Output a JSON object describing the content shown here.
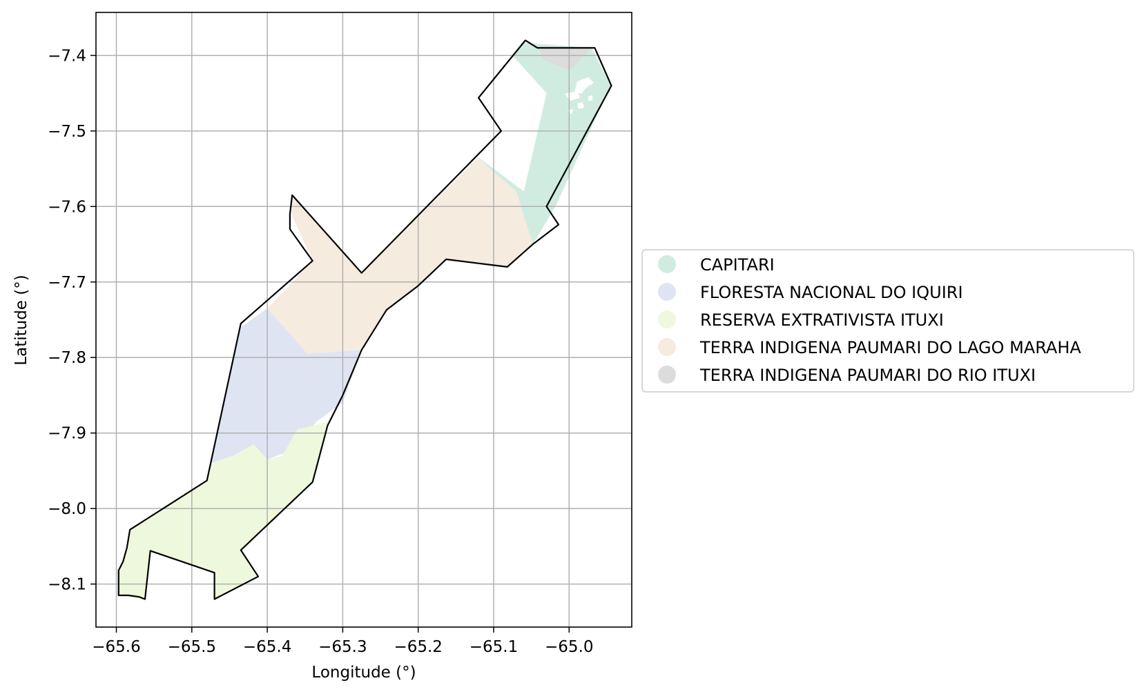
{
  "axes": {
    "xlabel": "Longitude (°)",
    "ylabel": "Latitude (°)",
    "xlim": [
      -65.627,
      -64.917
    ],
    "ylim": [
      -8.157,
      -7.343
    ],
    "x_ticks": [
      {
        "value": -65.6,
        "label": "−65.6"
      },
      {
        "value": -65.5,
        "label": "−65.5"
      },
      {
        "value": -65.4,
        "label": "−65.4"
      },
      {
        "value": -65.3,
        "label": "−65.3"
      },
      {
        "value": -65.2,
        "label": "−65.2"
      },
      {
        "value": -65.1,
        "label": "−65.1"
      },
      {
        "value": -65.0,
        "label": "−65.0"
      }
    ],
    "y_ticks": [
      {
        "value": -7.4,
        "label": "−7.4"
      },
      {
        "value": -7.5,
        "label": "−7.5"
      },
      {
        "value": -7.6,
        "label": "−7.6"
      },
      {
        "value": -7.7,
        "label": "−7.7"
      },
      {
        "value": -7.8,
        "label": "−7.8"
      },
      {
        "value": -7.9,
        "label": "−7.9"
      },
      {
        "value": -8.0,
        "label": "−8.0"
      },
      {
        "value": -8.1,
        "label": "−8.1"
      }
    ],
    "grid": true,
    "grid_color": "#b0b0b0"
  },
  "legend": {
    "placement": "right, outside plot",
    "items": [
      {
        "label": "CAPITARI",
        "color": "#d0ece0"
      },
      {
        "label": "FLORESTA NACIONAL DO IQUIRI",
        "color": "#dfe4f2"
      },
      {
        "label": "RESERVA EXTRATIVISTA ITUXI",
        "color": "#eef8dc"
      },
      {
        "label": "TERRA INDIGENA PAUMARI DO LAGO MARAHA",
        "color": "#f5ebde"
      },
      {
        "label": "TERRA INDIGENA PAUMARI DO RIO ITUXI",
        "color": "#dcdcdc"
      }
    ]
  },
  "regions": [
    {
      "name": "CAPITARI",
      "color": "#d0ece0",
      "coords": [
        [
          -65.062,
          -7.383
        ],
        [
          -64.97,
          -7.39
        ],
        [
          -64.945,
          -7.44
        ],
        [
          -65.018,
          -7.6
        ],
        [
          -65.048,
          -7.65
        ],
        [
          -65.092,
          -7.59
        ],
        [
          -65.12,
          -7.535
        ],
        [
          -65.1,
          -7.55
        ],
        [
          -65.06,
          -7.58
        ],
        [
          -65.03,
          -7.45
        ],
        [
          -65.075,
          -7.4
        ]
      ]
    },
    {
      "name": "FLORESTA NACIONAL DO IQUIRI",
      "color": "#dfe4f2",
      "coords": [
        [
          -65.4,
          -7.735
        ],
        [
          -65.435,
          -7.76
        ],
        [
          -65.475,
          -7.94
        ],
        [
          -65.445,
          -7.93
        ],
        [
          -65.418,
          -7.915
        ],
        [
          -65.4,
          -7.935
        ],
        [
          -65.36,
          -7.92
        ],
        [
          -65.335,
          -7.885
        ],
        [
          -65.3,
          -7.86
        ],
        [
          -65.275,
          -7.79
        ],
        [
          -65.347,
          -7.795
        ],
        [
          -65.382,
          -7.755
        ]
      ]
    },
    {
      "name": "RESERVA EXTRATIVISTA ITUXI",
      "color": "#eef8dc",
      "coords": [
        [
          -65.475,
          -7.94
        ],
        [
          -65.445,
          -7.93
        ],
        [
          -65.418,
          -7.915
        ],
        [
          -65.4,
          -7.935
        ],
        [
          -65.38,
          -7.93
        ],
        [
          -65.36,
          -7.895
        ],
        [
          -65.318,
          -7.885
        ],
        [
          -65.34,
          -7.965
        ],
        [
          -65.435,
          -8.055
        ],
        [
          -65.412,
          -8.09
        ],
        [
          -65.47,
          -8.12
        ],
        [
          -65.47,
          -8.085
        ],
        [
          -65.555,
          -8.056
        ],
        [
          -65.562,
          -8.12
        ],
        [
          -65.597,
          -8.115
        ],
        [
          -65.596,
          -8.085
        ],
        [
          -65.58,
          -8.028
        ],
        [
          -65.48,
          -7.963
        ]
      ]
    },
    {
      "name": "TERRA INDIGENA PAUMARI DO LAGO MARAHA",
      "color": "#f5ebde",
      "coords": [
        [
          -65.4,
          -7.735
        ],
        [
          -65.34,
          -7.672
        ],
        [
          -65.368,
          -7.61
        ],
        [
          -65.366,
          -7.585
        ],
        [
          -65.275,
          -7.688
        ],
        [
          -65.12,
          -7.535
        ],
        [
          -65.105,
          -7.55
        ],
        [
          -65.07,
          -7.58
        ],
        [
          -65.048,
          -7.65
        ],
        [
          -65.082,
          -7.68
        ],
        [
          -65.163,
          -7.67
        ],
        [
          -65.2,
          -7.705
        ],
        [
          -65.242,
          -7.737
        ],
        [
          -65.275,
          -7.79
        ],
        [
          -65.347,
          -7.795
        ],
        [
          -65.382,
          -7.755
        ]
      ]
    },
    {
      "name": "TERRA INDIGENA PAUMARI DO RIO ITUXI",
      "color": "#dcdcdc",
      "coords": [
        [
          -65.04,
          -7.39
        ],
        [
          -64.97,
          -7.39
        ],
        [
          -64.985,
          -7.405
        ],
        [
          -65.0,
          -7.42
        ],
        [
          -65.035,
          -7.405
        ]
      ]
    }
  ],
  "outline": [
    [
      -65.058,
      -7.38
    ],
    [
      -65.042,
      -7.39
    ],
    [
      -64.966,
      -7.39
    ],
    [
      -64.944,
      -7.44
    ],
    [
      -65.03,
      -7.6
    ],
    [
      -65.014,
      -7.624
    ],
    [
      -65.048,
      -7.65
    ],
    [
      -65.082,
      -7.68
    ],
    [
      -65.163,
      -7.67
    ],
    [
      -65.2,
      -7.705
    ],
    [
      -65.242,
      -7.737
    ],
    [
      -65.275,
      -7.79
    ],
    [
      -65.3,
      -7.85
    ],
    [
      -65.32,
      -7.89
    ],
    [
      -65.34,
      -7.965
    ],
    [
      -65.435,
      -8.055
    ],
    [
      -65.412,
      -8.09
    ],
    [
      -65.47,
      -8.12
    ],
    [
      -65.47,
      -8.085
    ],
    [
      -65.555,
      -8.056
    ],
    [
      -65.562,
      -8.12
    ],
    [
      -65.57,
      -8.117
    ],
    [
      -65.584,
      -8.115
    ],
    [
      -65.597,
      -8.115
    ],
    [
      -65.597,
      -8.082
    ],
    [
      -65.591,
      -8.07
    ],
    [
      -65.586,
      -8.052
    ],
    [
      -65.582,
      -8.028
    ],
    [
      -65.48,
      -7.963
    ],
    [
      -65.435,
      -7.755
    ],
    [
      -65.34,
      -7.672
    ],
    [
      -65.37,
      -7.63
    ],
    [
      -65.37,
      -7.61
    ],
    [
      -65.367,
      -7.585
    ],
    [
      -65.275,
      -7.688
    ],
    [
      -65.09,
      -7.5
    ],
    [
      -65.12,
      -7.456
    ]
  ]
}
